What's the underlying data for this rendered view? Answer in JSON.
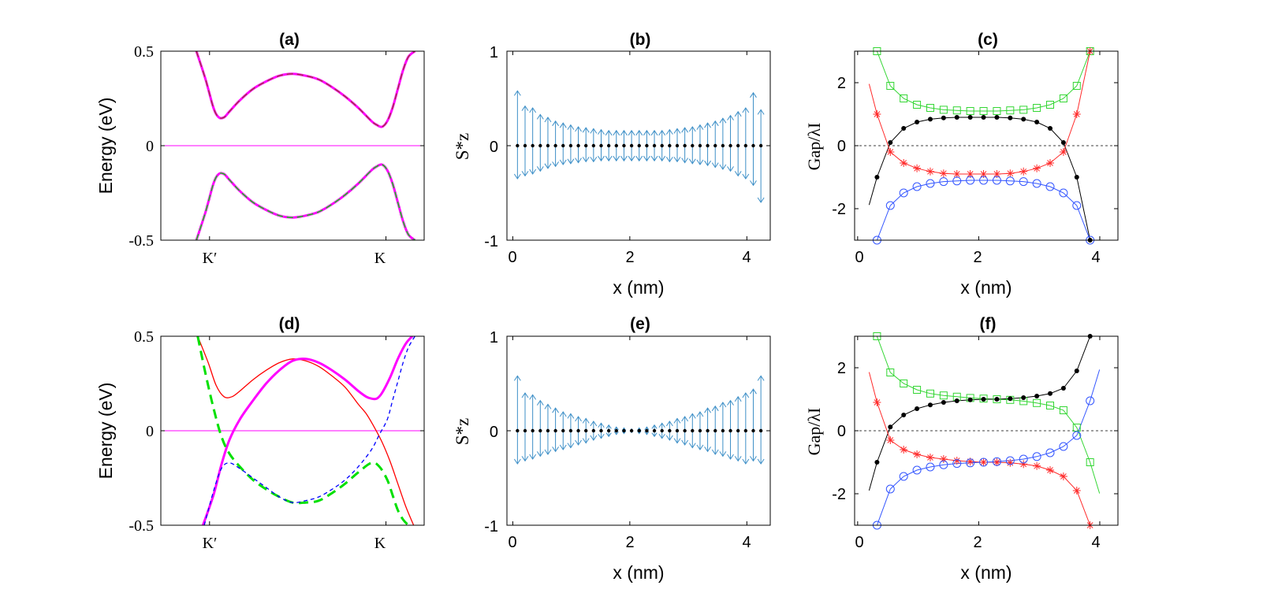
{
  "colors": {
    "magenta": "#ff00ff",
    "darkred": "#a23b3b",
    "green": "#00e000",
    "red": "#ff0000",
    "blue": "#0000ff",
    "arrow": "#3d8fc7",
    "black": "#000000",
    "lightgreen": "#33d633",
    "lightred": "#ff2a2a",
    "lightblue": "#3355ff"
  },
  "chart_data": [
    {
      "panel": "a",
      "type": "line",
      "title": "(a)",
      "xlabel": "",
      "ylabel": "Energy (eV)",
      "xlim": [
        0,
        1
      ],
      "ylim": [
        -0.5,
        0.5
      ],
      "yticks": [
        -0.5,
        0,
        0.5
      ],
      "yticklabels": [
        "-0.5",
        "0",
        "0.5"
      ],
      "xticks": [
        0.185,
        0.855
      ],
      "xticklabels": [
        "K′",
        "K"
      ],
      "series": [
        {
          "name": "upper band",
          "x": [
            0.135,
            0.17,
            0.2,
            0.22,
            0.24,
            0.26,
            0.3,
            0.35,
            0.4,
            0.45,
            0.5,
            0.55,
            0.6,
            0.65,
            0.7,
            0.75,
            0.8,
            0.82,
            0.84,
            0.86,
            0.88,
            0.9,
            0.92,
            0.94,
            0.965
          ],
          "y": [
            0.5,
            0.35,
            0.2,
            0.15,
            0.15,
            0.18,
            0.24,
            0.3,
            0.34,
            0.37,
            0.38,
            0.37,
            0.35,
            0.31,
            0.26,
            0.2,
            0.13,
            0.11,
            0.1,
            0.13,
            0.2,
            0.3,
            0.4,
            0.47,
            0.5
          ],
          "color": "magenta",
          "dash": "8,5",
          "dashcolor": "darkred"
        },
        {
          "name": "lower band",
          "x": [
            0.135,
            0.17,
            0.2,
            0.22,
            0.24,
            0.26,
            0.3,
            0.35,
            0.4,
            0.45,
            0.5,
            0.55,
            0.6,
            0.65,
            0.7,
            0.75,
            0.8,
            0.82,
            0.84,
            0.86,
            0.88,
            0.9,
            0.92,
            0.94,
            0.965
          ],
          "y": [
            -0.5,
            -0.35,
            -0.2,
            -0.15,
            -0.15,
            -0.18,
            -0.24,
            -0.3,
            -0.34,
            -0.37,
            -0.38,
            -0.37,
            -0.35,
            -0.31,
            -0.26,
            -0.2,
            -0.13,
            -0.11,
            -0.1,
            -0.13,
            -0.2,
            -0.3,
            -0.4,
            -0.47,
            -0.5
          ],
          "color": "magenta",
          "dash": "8,5",
          "dashcolor": "green"
        }
      ],
      "hline": {
        "y": 0,
        "color": "magenta"
      }
    },
    {
      "panel": "b",
      "type": "quiver",
      "title": "(b)",
      "xlabel": "x (nm)",
      "ylabel": "S*z",
      "xlim": [
        -0.1,
        4.4
      ],
      "ylim": [
        -1,
        1
      ],
      "xticks": [
        0,
        2,
        4
      ],
      "xticklabels": [
        "0",
        "2",
        "4"
      ],
      "yticks": [
        -1,
        0,
        1
      ],
      "yticklabels": [
        "-1",
        "0",
        "1"
      ],
      "x": [
        0.08,
        0.34,
        0.6,
        0.86,
        1.12,
        1.38,
        1.64,
        1.9,
        2.16,
        2.42,
        2.68,
        2.94,
        3.2,
        3.46,
        3.72,
        3.98,
        4.24,
        0.21,
        0.47,
        0.73,
        0.99,
        1.25,
        1.51,
        1.77,
        2.03,
        2.29,
        2.55,
        2.81,
        3.07,
        3.33,
        3.59,
        3.85,
        4.11
      ],
      "up": [
        0.58,
        0.4,
        0.3,
        0.24,
        0.2,
        0.18,
        0.16,
        0.16,
        0.16,
        0.16,
        0.17,
        0.19,
        0.22,
        0.26,
        0.32,
        0.4,
        0.38,
        0.42,
        0.33,
        0.26,
        0.22,
        0.19,
        0.17,
        0.16,
        0.16,
        0.16,
        0.16,
        0.18,
        0.2,
        0.24,
        0.29,
        0.36,
        0.56
      ],
      "down": [
        -0.35,
        -0.3,
        -0.24,
        -0.2,
        -0.18,
        -0.17,
        -0.16,
        -0.16,
        -0.16,
        -0.16,
        -0.17,
        -0.18,
        -0.2,
        -0.23,
        -0.27,
        -0.35,
        -0.6,
        -0.32,
        -0.27,
        -0.22,
        -0.19,
        -0.17,
        -0.16,
        -0.16,
        -0.16,
        -0.16,
        -0.16,
        -0.17,
        -0.19,
        -0.21,
        -0.25,
        -0.32,
        -0.42
      ]
    },
    {
      "panel": "c",
      "type": "line",
      "title": "(c)",
      "xlabel": "x (nm)",
      "ylabel": "Gap/λI",
      "xlim": [
        -0.05,
        4.3
      ],
      "ylim": [
        -3,
        3
      ],
      "xticks": [
        0,
        2,
        4
      ],
      "xticklabels": [
        "0",
        "2",
        "4"
      ],
      "yticks": [
        -2,
        0,
        2
      ],
      "yticklabels": [
        "-2",
        "0",
        "2"
      ],
      "x": [
        0.32,
        0.54,
        0.76,
        0.98,
        1.2,
        1.42,
        1.64,
        1.86,
        2.08,
        2.3,
        2.52,
        2.74,
        2.96,
        3.18,
        3.4,
        3.62,
        3.84
      ],
      "series": [
        {
          "name": "green squares",
          "marker": "square",
          "color": "lightgreen",
          "values": [
            3,
            1.9,
            1.5,
            1.3,
            1.2,
            1.14,
            1.12,
            1.1,
            1.1,
            1.1,
            1.12,
            1.14,
            1.2,
            1.3,
            1.5,
            1.9,
            3
          ]
        },
        {
          "name": "black dots",
          "marker": "dot",
          "color": "black",
          "values": [
            -1,
            0.1,
            0.55,
            0.75,
            0.84,
            0.88,
            0.9,
            0.9,
            0.9,
            0.9,
            0.88,
            0.84,
            0.75,
            0.55,
            0.1,
            -1,
            -3
          ]
        },
        {
          "name": "red stars",
          "marker": "star",
          "color": "lightred",
          "values": [
            1,
            -0.2,
            -0.55,
            -0.72,
            -0.82,
            -0.88,
            -0.9,
            -0.9,
            -0.9,
            -0.9,
            -0.88,
            -0.82,
            -0.72,
            -0.55,
            -0.2,
            1,
            3
          ]
        },
        {
          "name": "blue circles",
          "marker": "circle",
          "color": "lightblue",
          "values": [
            -3,
            -1.9,
            -1.5,
            -1.3,
            -1.2,
            -1.14,
            -1.12,
            -1.1,
            -1.1,
            -1.1,
            -1.12,
            -1.14,
            -1.2,
            -1.3,
            -1.5,
            -1.9,
            -3
          ]
        }
      ]
    },
    {
      "panel": "d",
      "type": "line",
      "title": "(d)",
      "xlabel": "",
      "ylabel": "Energy (eV)",
      "xlim": [
        0,
        1
      ],
      "ylim": [
        -0.5,
        0.5
      ],
      "yticks": [
        -0.5,
        0,
        0.5
      ],
      "yticklabels": [
        "-0.5",
        "0",
        "0.5"
      ],
      "xticks": [
        0.185,
        0.855
      ],
      "xticklabels": [
        "K′",
        "K"
      ],
      "series": [
        {
          "name": "red upper",
          "color": "red",
          "width": 1.3,
          "x": [
            0.14,
            0.18,
            0.21,
            0.24,
            0.27,
            0.3,
            0.35,
            0.4,
            0.45,
            0.5,
            0.55,
            0.6,
            0.65,
            0.7,
            0.75,
            0.78,
            0.81,
            0.84,
            0.87,
            0.9,
            0.93,
            0.96
          ],
          "y": [
            0.5,
            0.36,
            0.24,
            0.18,
            0.18,
            0.21,
            0.27,
            0.32,
            0.36,
            0.38,
            0.37,
            0.34,
            0.29,
            0.23,
            0.14,
            0.09,
            0.02,
            -0.06,
            -0.16,
            -0.28,
            -0.4,
            -0.5
          ]
        },
        {
          "name": "magenta thick",
          "color": "magenta",
          "width": 3,
          "x": [
            0.16,
            0.2,
            0.23,
            0.26,
            0.3,
            0.35,
            0.4,
            0.45,
            0.5,
            0.55,
            0.6,
            0.65,
            0.7,
            0.75,
            0.78,
            0.8,
            0.82,
            0.84,
            0.87,
            0.9,
            0.93,
            0.955
          ],
          "y": [
            -0.5,
            -0.34,
            -0.18,
            -0.05,
            0.06,
            0.16,
            0.25,
            0.32,
            0.37,
            0.38,
            0.36,
            0.32,
            0.27,
            0.21,
            0.18,
            0.17,
            0.17,
            0.2,
            0.28,
            0.38,
            0.46,
            0.5
          ]
        },
        {
          "name": "green dashed",
          "color": "green",
          "width": 3,
          "dash": "12,7",
          "x": [
            0.14,
            0.17,
            0.2,
            0.23,
            0.26,
            0.3,
            0.35,
            0.4,
            0.45,
            0.5,
            0.55,
            0.6,
            0.65,
            0.7,
            0.75,
            0.8,
            0.83,
            0.86,
            0.88,
            0.9,
            0.92,
            0.94
          ],
          "y": [
            0.5,
            0.3,
            0.12,
            -0.03,
            -0.12,
            -0.19,
            -0.26,
            -0.31,
            -0.35,
            -0.38,
            -0.38,
            -0.37,
            -0.33,
            -0.28,
            -0.22,
            -0.17,
            -0.19,
            -0.26,
            -0.34,
            -0.42,
            -0.47,
            -0.5
          ]
        },
        {
          "name": "blue dashed",
          "color": "blue",
          "width": 1.3,
          "dash": "5,4",
          "x": [
            0.165,
            0.2,
            0.23,
            0.26,
            0.3,
            0.35,
            0.4,
            0.45,
            0.5,
            0.55,
            0.6,
            0.65,
            0.7,
            0.75,
            0.8,
            0.83,
            0.86,
            0.88,
            0.9,
            0.92,
            0.94,
            0.965
          ],
          "y": [
            -0.5,
            -0.32,
            -0.2,
            -0.17,
            -0.2,
            -0.25,
            -0.3,
            -0.35,
            -0.38,
            -0.37,
            -0.35,
            -0.31,
            -0.26,
            -0.19,
            -0.1,
            -0.02,
            0.06,
            0.16,
            0.26,
            0.36,
            0.44,
            0.5
          ]
        }
      ],
      "hline": {
        "y": 0,
        "color": "magenta"
      }
    },
    {
      "panel": "e",
      "type": "quiver",
      "title": "(e)",
      "xlabel": "x (nm)",
      "ylabel": "S*z",
      "xlim": [
        -0.1,
        4.4
      ],
      "ylim": [
        -1,
        1
      ],
      "xticks": [
        0,
        2,
        4
      ],
      "xticklabels": [
        "0",
        "2",
        "4"
      ],
      "yticks": [
        -1,
        0,
        1
      ],
      "yticklabels": [
        "-1",
        "0",
        "1"
      ],
      "x": [
        0.08,
        0.34,
        0.6,
        0.86,
        1.12,
        1.38,
        1.64,
        1.9,
        2.16,
        2.42,
        2.68,
        2.94,
        3.2,
        3.46,
        3.72,
        3.98,
        4.24,
        0.21,
        0.47,
        0.73,
        0.99,
        1.25,
        1.51,
        1.77,
        2.03,
        2.29,
        2.55,
        2.81,
        3.07,
        3.33,
        3.59,
        3.85,
        4.11
      ],
      "up": [
        0.58,
        0.38,
        0.28,
        0.2,
        0.15,
        0.1,
        0.06,
        0.03,
        0.03,
        0.06,
        0.1,
        0.15,
        0.2,
        0.26,
        0.32,
        0.4,
        0.58,
        0.4,
        0.32,
        0.24,
        0.18,
        0.13,
        0.08,
        0.04,
        0.02,
        0.04,
        0.08,
        0.13,
        0.18,
        0.24,
        0.3,
        0.36,
        0.44
      ],
      "down": [
        -0.35,
        -0.3,
        -0.25,
        -0.2,
        -0.15,
        -0.1,
        -0.06,
        -0.03,
        -0.03,
        -0.06,
        -0.1,
        -0.15,
        -0.2,
        -0.25,
        -0.3,
        -0.35,
        -0.35,
        -0.32,
        -0.27,
        -0.22,
        -0.18,
        -0.13,
        -0.08,
        -0.04,
        -0.02,
        -0.04,
        -0.08,
        -0.13,
        -0.18,
        -0.22,
        -0.27,
        -0.32,
        -0.32
      ]
    },
    {
      "panel": "f",
      "type": "line",
      "title": "(f)",
      "xlabel": "x (nm)",
      "ylabel": "Gap/λI",
      "xlim": [
        -0.05,
        4.3
      ],
      "ylim": [
        -3,
        3
      ],
      "xticks": [
        0,
        2,
        4
      ],
      "xticklabels": [
        "0",
        "2",
        "4"
      ],
      "yticks": [
        -2,
        0,
        2
      ],
      "yticklabels": [
        "-2",
        "0",
        "2"
      ],
      "x": [
        0.32,
        0.54,
        0.76,
        0.98,
        1.2,
        1.42,
        1.64,
        1.86,
        2.08,
        2.3,
        2.52,
        2.74,
        2.96,
        3.18,
        3.4,
        3.62,
        3.84
      ],
      "series": [
        {
          "name": "green squares",
          "marker": "square",
          "color": "lightgreen",
          "values": [
            3,
            1.85,
            1.5,
            1.3,
            1.18,
            1.12,
            1.08,
            1.04,
            1.02,
            1,
            0.98,
            0.94,
            0.88,
            0.8,
            0.65,
            0.1,
            -1
          ]
        },
        {
          "name": "black dots",
          "marker": "dot",
          "color": "black",
          "values": [
            -1,
            0.12,
            0.5,
            0.7,
            0.82,
            0.9,
            0.95,
            0.98,
            1,
            1,
            1.02,
            1.05,
            1.1,
            1.18,
            1.35,
            1.9,
            3
          ]
        },
        {
          "name": "red stars",
          "marker": "star",
          "color": "lightred",
          "values": [
            0.9,
            -0.3,
            -0.6,
            -0.75,
            -0.85,
            -0.9,
            -0.95,
            -0.98,
            -1,
            -1,
            -1.02,
            -1.06,
            -1.12,
            -1.25,
            -1.45,
            -1.9,
            -3
          ]
        },
        {
          "name": "blue circles",
          "marker": "circle",
          "color": "lightblue",
          "values": [
            -3,
            -1.85,
            -1.45,
            -1.25,
            -1.15,
            -1.08,
            -1.04,
            -1.02,
            -1,
            -0.98,
            -0.95,
            -0.9,
            -0.82,
            -0.7,
            -0.5,
            -0.15,
            0.95
          ]
        }
      ]
    }
  ]
}
